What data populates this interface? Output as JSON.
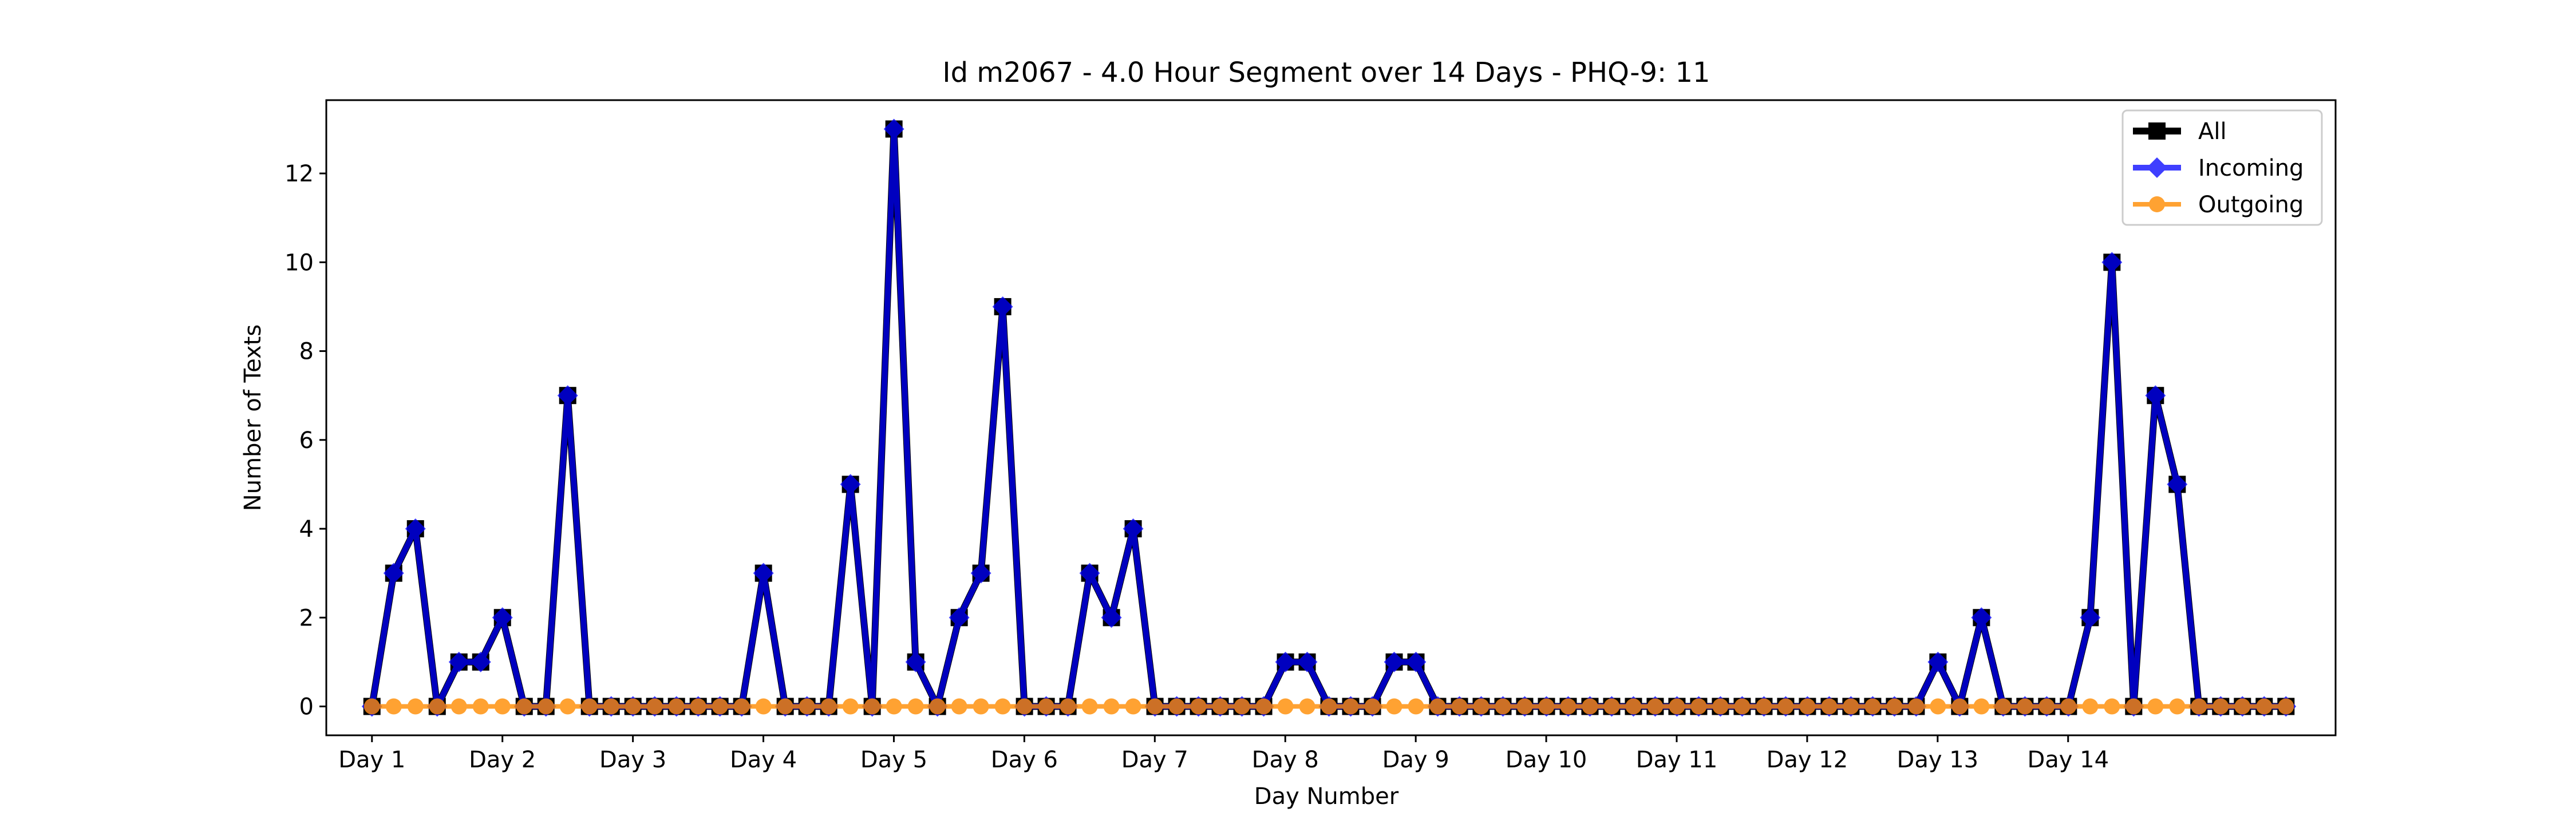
{
  "chart_data": {
    "type": "line",
    "title": "Id m2067 - 4.0 Hour Segment over 14 Days - PHQ-9: 11",
    "xlabel": "Day Number",
    "ylabel": "Number of Texts",
    "xlim": [
      -0.35,
      15.05
    ],
    "ylim": [
      -0.65,
      13.65
    ],
    "yticks": [
      0,
      2,
      4,
      6,
      8,
      10,
      12
    ],
    "xticks": [
      {
        "value": 0,
        "label": "Day 1"
      },
      {
        "value": 1,
        "label": "Day 2"
      },
      {
        "value": 2,
        "label": "Day 3"
      },
      {
        "value": 3,
        "label": "Day 4"
      },
      {
        "value": 4,
        "label": "Day 5"
      },
      {
        "value": 5,
        "label": "Day 6"
      },
      {
        "value": 6,
        "label": "Day 7"
      },
      {
        "value": 7,
        "label": "Day 8"
      },
      {
        "value": 8,
        "label": "Day 9"
      },
      {
        "value": 9,
        "label": "Day 10"
      },
      {
        "value": 10,
        "label": "Day 11"
      },
      {
        "value": 11,
        "label": "Day 12"
      },
      {
        "value": 12,
        "label": "Day 13"
      },
      {
        "value": 13,
        "label": "Day 14"
      }
    ],
    "x_step": 0.1667,
    "legend_position": "top-right",
    "grid": false,
    "series": [
      {
        "name": "All",
        "color": "#000000",
        "marker": "square",
        "values": [
          0,
          3,
          4,
          0,
          1,
          1,
          2,
          0,
          0,
          7,
          0,
          0,
          0,
          0,
          0,
          0,
          0,
          0,
          3,
          0,
          0,
          0,
          5,
          0,
          13,
          1,
          0,
          2,
          3,
          9,
          0,
          0,
          0,
          3,
          2,
          4,
          0,
          0,
          0,
          0,
          0,
          0,
          1,
          1,
          0,
          0,
          0,
          1,
          1,
          0,
          0,
          0,
          0,
          0,
          0,
          0,
          0,
          0,
          0,
          0,
          0,
          0,
          0,
          0,
          0,
          0,
          0,
          0,
          0,
          0,
          0,
          0,
          1,
          0,
          2,
          0,
          0,
          0,
          0,
          2,
          10,
          0,
          7,
          5,
          0,
          0,
          0,
          0,
          0
        ]
      },
      {
        "name": "Incoming",
        "color": "#0000ff",
        "marker": "diamond",
        "values": [
          0,
          3,
          4,
          0,
          1,
          1,
          2,
          0,
          0,
          7,
          0,
          0,
          0,
          0,
          0,
          0,
          0,
          0,
          3,
          0,
          0,
          0,
          5,
          0,
          13,
          1,
          0,
          2,
          3,
          9,
          0,
          0,
          0,
          3,
          2,
          4,
          0,
          0,
          0,
          0,
          0,
          0,
          1,
          1,
          0,
          0,
          0,
          1,
          1,
          0,
          0,
          0,
          0,
          0,
          0,
          0,
          0,
          0,
          0,
          0,
          0,
          0,
          0,
          0,
          0,
          0,
          0,
          0,
          0,
          0,
          0,
          0,
          1,
          0,
          2,
          0,
          0,
          0,
          0,
          2,
          10,
          0,
          7,
          5,
          0,
          0,
          0,
          0,
          0
        ]
      },
      {
        "name": "Outgoing",
        "color": "#ff8c00",
        "marker": "circle",
        "values": [
          0,
          0,
          0,
          0,
          0,
          0,
          0,
          0,
          0,
          0,
          0,
          0,
          0,
          0,
          0,
          0,
          0,
          0,
          0,
          0,
          0,
          0,
          0,
          0,
          0,
          0,
          0,
          0,
          0,
          0,
          0,
          0,
          0,
          0,
          0,
          0,
          0,
          0,
          0,
          0,
          0,
          0,
          0,
          0,
          0,
          0,
          0,
          0,
          0,
          0,
          0,
          0,
          0,
          0,
          0,
          0,
          0,
          0,
          0,
          0,
          0,
          0,
          0,
          0,
          0,
          0,
          0,
          0,
          0,
          0,
          0,
          0,
          0,
          0,
          0,
          0,
          0,
          0,
          0,
          0,
          0,
          0,
          0,
          0,
          0,
          0,
          0,
          0,
          0
        ]
      }
    ]
  }
}
